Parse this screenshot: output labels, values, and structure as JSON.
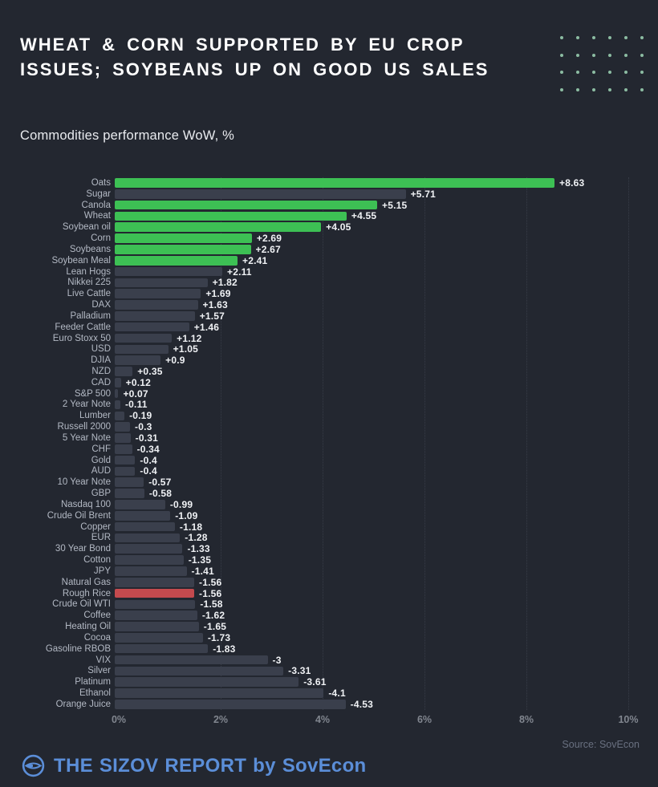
{
  "header": {
    "title_lines": [
      "WHEAT & CORN SUPPORTED BY EU CROP",
      "ISSUES; SOYBEANS UP ON GOOD US SALES"
    ],
    "dot_grid": {
      "rows": 4,
      "cols": 6
    }
  },
  "subtitle": "Commodities performance WoW, %",
  "chart_data": {
    "type": "bar",
    "orientation": "horizontal",
    "title": "Commodities performance WoW, %",
    "xlabel": "",
    "ylabel": "",
    "xlim": [
      0,
      10
    ],
    "grid": true,
    "legend_position": "none",
    "note": "bar length encodes absolute WoW % change; green = agri gainers, red = highlighted loser",
    "x_ticks": [
      {
        "label": "0%",
        "value": 0
      },
      {
        "label": "2%",
        "value": 2
      },
      {
        "label": "4%",
        "value": 4
      },
      {
        "label": "6%",
        "value": 6
      },
      {
        "label": "8%",
        "value": 8
      },
      {
        "label": "10%",
        "value": 10
      }
    ],
    "items": [
      {
        "category": "Oats",
        "value": 8.63,
        "label": "+8.63",
        "color": "green"
      },
      {
        "category": "Sugar",
        "value": 5.71,
        "label": "+5.71",
        "color": "gray"
      },
      {
        "category": "Canola",
        "value": 5.15,
        "label": "+5.15",
        "color": "green"
      },
      {
        "category": "Wheat",
        "value": 4.55,
        "label": "+4.55",
        "color": "green"
      },
      {
        "category": "Soybean oil",
        "value": 4.05,
        "label": "+4.05",
        "color": "green"
      },
      {
        "category": "Corn",
        "value": 2.69,
        "label": "+2.69",
        "color": "green"
      },
      {
        "category": "Soybeans",
        "value": 2.67,
        "label": "+2.67",
        "color": "green"
      },
      {
        "category": "Soybean Meal",
        "value": 2.41,
        "label": "+2.41",
        "color": "green"
      },
      {
        "category": "Lean Hogs",
        "value": 2.11,
        "label": "+2.11",
        "color": "gray"
      },
      {
        "category": "Nikkei 225",
        "value": 1.82,
        "label": "+1.82",
        "color": "gray"
      },
      {
        "category": "Live Cattle",
        "value": 1.69,
        "label": "+1.69",
        "color": "gray"
      },
      {
        "category": "DAX",
        "value": 1.63,
        "label": "+1.63",
        "color": "gray"
      },
      {
        "category": "Palladium",
        "value": 1.57,
        "label": "+1.57",
        "color": "gray"
      },
      {
        "category": "Feeder Cattle",
        "value": 1.46,
        "label": "+1.46",
        "color": "gray"
      },
      {
        "category": "Euro Stoxx 50",
        "value": 1.12,
        "label": "+1.12",
        "color": "gray"
      },
      {
        "category": "USD",
        "value": 1.05,
        "label": "+1.05",
        "color": "gray"
      },
      {
        "category": "DJIA",
        "value": 0.9,
        "label": "+0.9",
        "color": "gray"
      },
      {
        "category": "NZD",
        "value": 0.35,
        "label": "+0.35",
        "color": "gray"
      },
      {
        "category": "CAD",
        "value": 0.12,
        "label": "+0.12",
        "color": "gray"
      },
      {
        "category": "S&P 500",
        "value": 0.07,
        "label": "+0.07",
        "color": "gray"
      },
      {
        "category": "2 Year Note",
        "value": -0.11,
        "label": "-0.11",
        "color": "gray"
      },
      {
        "category": "Lumber",
        "value": -0.19,
        "label": "-0.19",
        "color": "gray"
      },
      {
        "category": "Russell 2000",
        "value": -0.3,
        "label": "-0.3",
        "color": "gray"
      },
      {
        "category": "5 Year Note",
        "value": -0.31,
        "label": "-0.31",
        "color": "gray"
      },
      {
        "category": "CHF",
        "value": -0.34,
        "label": "-0.34",
        "color": "gray"
      },
      {
        "category": "Gold",
        "value": -0.4,
        "label": "-0.4",
        "color": "gray"
      },
      {
        "category": "AUD",
        "value": -0.4,
        "label": "-0.4",
        "color": "gray"
      },
      {
        "category": "10 Year Note",
        "value": -0.57,
        "label": "-0.57",
        "color": "gray"
      },
      {
        "category": "GBP",
        "value": -0.58,
        "label": "-0.58",
        "color": "gray"
      },
      {
        "category": "Nasdaq 100",
        "value": -0.99,
        "label": "-0.99",
        "color": "gray"
      },
      {
        "category": "Crude Oil Brent",
        "value": -1.09,
        "label": "-1.09",
        "color": "gray"
      },
      {
        "category": "Copper",
        "value": -1.18,
        "label": "-1.18",
        "color": "gray"
      },
      {
        "category": "EUR",
        "value": -1.28,
        "label": "-1.28",
        "color": "gray"
      },
      {
        "category": "30 Year Bond",
        "value": -1.33,
        "label": "-1.33",
        "color": "gray"
      },
      {
        "category": "Cotton",
        "value": -1.35,
        "label": "-1.35",
        "color": "gray"
      },
      {
        "category": "JPY",
        "value": -1.41,
        "label": "-1.41",
        "color": "gray"
      },
      {
        "category": "Natural Gas",
        "value": -1.56,
        "label": "-1.56",
        "color": "gray"
      },
      {
        "category": "Rough Rice",
        "value": -1.56,
        "label": "-1.56",
        "color": "red"
      },
      {
        "category": "Crude Oil WTI",
        "value": -1.58,
        "label": "-1.58",
        "color": "gray"
      },
      {
        "category": "Coffee",
        "value": -1.62,
        "label": "-1.62",
        "color": "gray"
      },
      {
        "category": "Heating Oil",
        "value": -1.65,
        "label": "-1.65",
        "color": "gray"
      },
      {
        "category": "Cocoa",
        "value": -1.73,
        "label": "-1.73",
        "color": "gray"
      },
      {
        "category": "Gasoline RBOB",
        "value": -1.83,
        "label": "-1.83",
        "color": "gray"
      },
      {
        "category": "VIX",
        "value": -3,
        "label": "-3",
        "color": "gray"
      },
      {
        "category": "Silver",
        "value": -3.31,
        "label": "-3.31",
        "color": "gray"
      },
      {
        "category": "Platinum",
        "value": -3.61,
        "label": "-3.61",
        "color": "gray"
      },
      {
        "category": "Ethanol",
        "value": -4.1,
        "label": "-4.1",
        "color": "gray"
      },
      {
        "category": "Orange Juice",
        "value": -4.53,
        "label": "-4.53",
        "color": "gray"
      }
    ]
  },
  "footer": {
    "source": "Source: SovEcon",
    "brand": "THE SIZOV REPORT by SovEcon",
    "logo_icon": "sovecon-eye-logo"
  },
  "colors": {
    "background": "#232730",
    "bar_gray": "#3a3f4c",
    "bar_green": "#3dc054",
    "bar_red": "#c44a4e",
    "dots_green": "#8cbca2",
    "accent_blue": "#5b8ed8",
    "title_text": "#ffffff",
    "category_text": "#b3b9c4",
    "value_text": "#f0f2f5",
    "axis_text": "#81868f",
    "source_text": "#697080"
  }
}
